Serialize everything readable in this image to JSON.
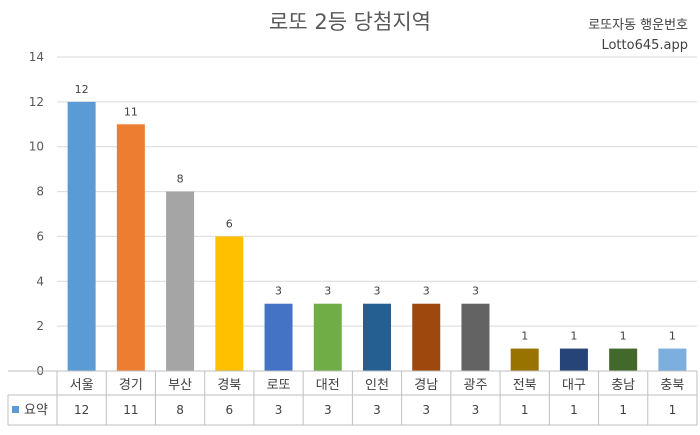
{
  "watermark": {
    "line1": "로또자동 행운번호",
    "line2": "Lotto645.app"
  },
  "chart_data": {
    "type": "bar",
    "title": "로또 2등 당첨지역",
    "categories": [
      "서울",
      "경기",
      "부산",
      "경북",
      "로또",
      "대전",
      "인천",
      "경남",
      "광주",
      "전북",
      "대구",
      "충남",
      "충북"
    ],
    "series": [
      {
        "name": "요약",
        "values": [
          12,
          11,
          8,
          6,
          3,
          3,
          3,
          3,
          3,
          1,
          1,
          1,
          1
        ],
        "colors": [
          "#5b9bd5",
          "#ed7d31",
          "#a5a5a5",
          "#ffc000",
          "#4472c4",
          "#70ad47",
          "#255e91",
          "#9e480e",
          "#636363",
          "#997300",
          "#264478",
          "#43682b",
          "#7cafdd"
        ]
      }
    ],
    "ylim": [
      0,
      14
    ],
    "yticks": [
      0,
      2,
      4,
      6,
      8,
      10,
      12,
      14
    ],
    "grid": true,
    "legend": "data-table",
    "xlabel": "",
    "ylabel": ""
  }
}
